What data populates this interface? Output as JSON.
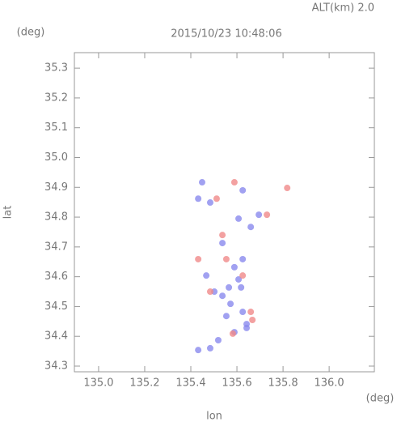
{
  "chart_data": {
    "type": "scatter",
    "title": "2015/10/23 10:48:06",
    "subtitle": "ALT(km) 2.0",
    "x_label": "lon",
    "y_label": "lat",
    "x_unit": "(deg)",
    "y_unit": "(deg)",
    "xlim": [
      134.895,
      136.196
    ],
    "ylim": [
      34.281,
      35.352
    ],
    "xticks": [
      {
        "value": 135,
        "label": "135.0"
      },
      135.2,
      135.4,
      135.6,
      135.8,
      {
        "value": 136,
        "label": "136.0"
      }
    ],
    "yticks": [
      34.3,
      34.4,
      34.5,
      34.6,
      34.7,
      34.8,
      34.9,
      {
        "value": 35,
        "label": "35.0"
      },
      35.1,
      35.2,
      35.3
    ],
    "series": [
      {
        "color": "#8a8aee",
        "x": [
          135.572,
          135.537,
          135.625,
          135.607,
          135.565,
          135.589,
          135.642,
          135.519,
          135.484,
          135.432,
          135.537,
          135.589,
          135.467,
          135.625,
          135.607,
          135.66,
          135.484,
          135.432,
          135.695,
          135.642,
          135.554,
          135.502,
          135.618,
          135.449,
          135.625
        ],
        "values": [
          34.509,
          34.536,
          34.482,
          34.591,
          34.564,
          34.414,
          34.428,
          34.387,
          34.36,
          34.354,
          34.713,
          34.632,
          34.604,
          34.659,
          34.795,
          34.767,
          34.849,
          34.862,
          34.808,
          34.441,
          34.468,
          34.55,
          34.564,
          34.917,
          34.89
        ]
      },
      {
        "color": "#f08a8a",
        "x": [
          135.582,
          135.66,
          135.432,
          135.554,
          135.625,
          135.73,
          135.818,
          135.589,
          135.512,
          135.537,
          135.484,
          135.667
        ],
        "values": [
          34.409,
          34.482,
          34.659,
          34.659,
          34.604,
          34.808,
          34.898,
          34.917,
          34.862,
          34.74,
          34.55,
          34.455
        ]
      }
    ]
  }
}
